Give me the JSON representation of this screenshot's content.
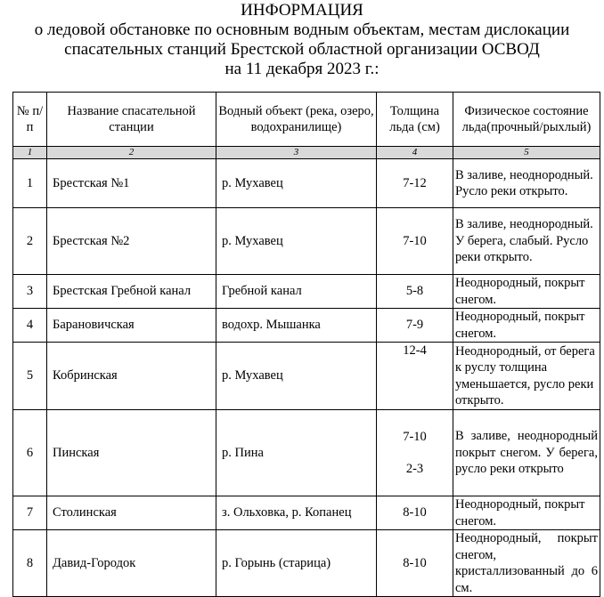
{
  "title": {
    "line1": "ИНФОРМАЦИЯ",
    "line2": "о ледовой обстановке по основным водным объектам, местам дислокации",
    "line3": "спасательных станций Брестской областной организации ОСВОД",
    "line4": "на 11 декабря 2023 г.:"
  },
  "table": {
    "headers": [
      "№ п/п",
      "Название спасательной станции",
      "Водный объект (река, озеро, водохранилище)",
      "Толщина льда (см)",
      "Физическое состояние льда(прочный/рыхлый)"
    ],
    "column_numbers": [
      "1",
      "2",
      "3",
      "4",
      "5"
    ],
    "rows": [
      {
        "n": "1",
        "station": "Брестская №1",
        "water": "р. Мухавец",
        "thickness": "7-12",
        "state": "В заливе, неоднородный. Русло реки открыто."
      },
      {
        "n": "2",
        "station": "Брестская №2",
        "water": "р. Мухавец",
        "thickness": "7-10",
        "state": "В заливе, неоднородный. У берега, слабый. Русло реки открыто."
      },
      {
        "n": "3",
        "station": "Брестская Гребной канал",
        "water": "Гребной канал",
        "thickness": "5-8",
        "state": "Неоднородный, покрыт снегом."
      },
      {
        "n": "4",
        "station": "Барановичская",
        "water": "водохр. Мышанка",
        "thickness": "7-9",
        "state": "Неоднородный, покрыт снегом."
      },
      {
        "n": "5",
        "station": "Кобринская",
        "water": "р. Мухавец",
        "thickness": "12-4",
        "state": "Неоднородный, от берега к руслу толщина уменьшается, русло реки открыто."
      },
      {
        "n": "6",
        "station": "Пинская",
        "water": "р. Пина",
        "thickness": "7-10",
        "thickness2": "2-3",
        "state": "В заливе, неоднородный покрыт снегом. У берега, русло реки открыто"
      },
      {
        "n": "7",
        "station": "Столинская",
        "water": "з. Ольховка, р. Копанец",
        "thickness": "8-10",
        "state": "Неоднородный, покрыт снегом."
      },
      {
        "n": "8",
        "station": "Давид-Городок",
        "water": "р. Горынь (старица)",
        "thickness": "8-10",
        "state": "Неоднородный, покрыт снегом, кристаллизованный до 6 см."
      }
    ]
  }
}
